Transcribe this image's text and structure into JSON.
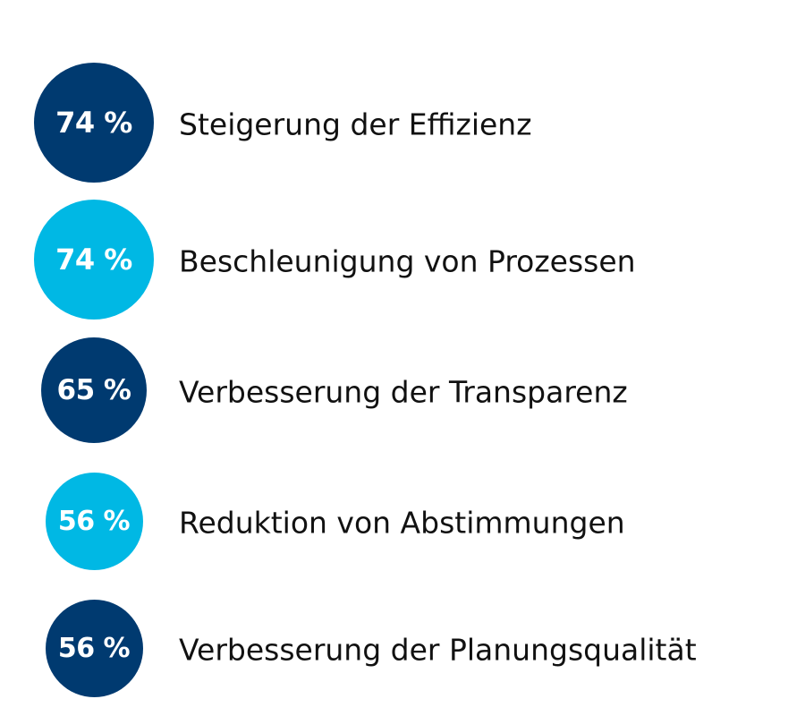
{
  "colors": {
    "dark": "#003a70",
    "light": "#00b8e4"
  },
  "chart_data": {
    "type": "bubble-list",
    "unit": "%",
    "items": [
      {
        "value": 74,
        "value_label": "74 %",
        "label": "Steigerung der Effizienz",
        "color": "#003a70"
      },
      {
        "value": 74,
        "value_label": "74 %",
        "label": "Beschleunigung von Prozessen",
        "color": "#00b8e4"
      },
      {
        "value": 65,
        "value_label": "65 %",
        "label": "Verbesserung der Transparenz",
        "color": "#003a70"
      },
      {
        "value": 56,
        "value_label": "56 %",
        "label": "Reduktion von Abstimmungen",
        "color": "#00b8e4"
      },
      {
        "value": 56,
        "value_label": "56 %",
        "label": "Verbesserung der Planungsqualität",
        "color": "#003a70"
      }
    ]
  }
}
